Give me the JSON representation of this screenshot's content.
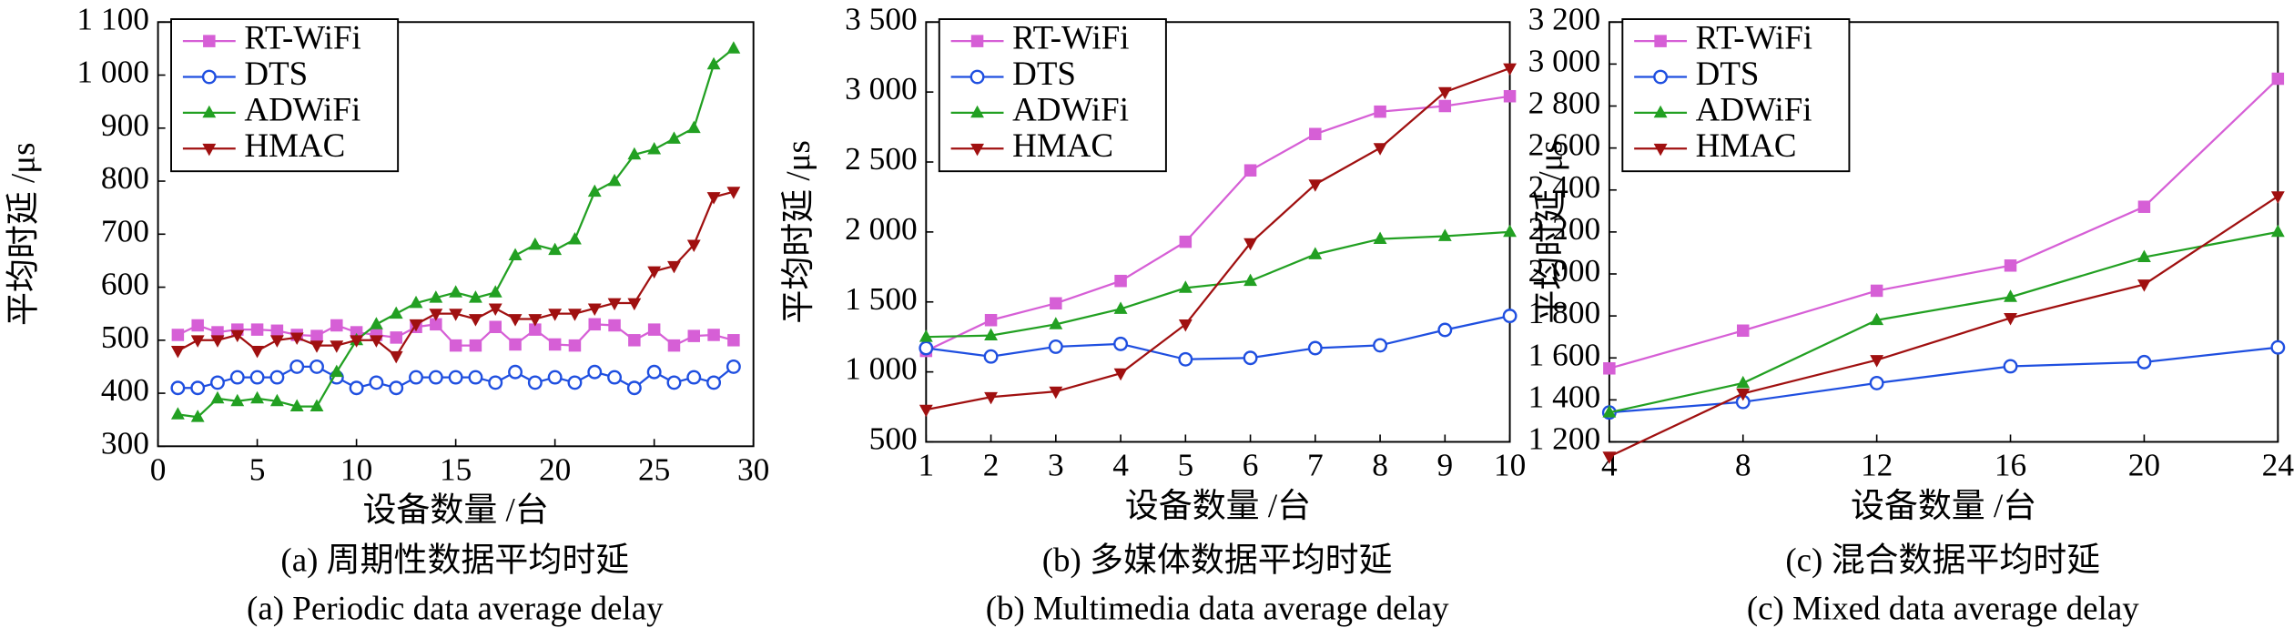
{
  "chart_data": [
    {
      "type": "line",
      "title": "(a) 周期性数据平均时延",
      "subtitle": "(a) Periodic data average delay",
      "xlabel": "设备数量 /台",
      "ylabel": "平均时延 /μs",
      "x": [
        1,
        2,
        3,
        4,
        5,
        6,
        7,
        8,
        9,
        10,
        11,
        12,
        13,
        14,
        15,
        16,
        17,
        18,
        19,
        20,
        21,
        22,
        23,
        24,
        25,
        26,
        27,
        28,
        29
      ],
      "xlim": [
        0,
        30
      ],
      "xticks": [
        0,
        5,
        10,
        15,
        20,
        25,
        30
      ],
      "ylim": [
        300,
        1100
      ],
      "yticks": [
        300,
        400,
        500,
        600,
        700,
        800,
        900,
        {
          "value": 1000,
          "label": "1 000"
        },
        {
          "value": 1100,
          "label": "1 100"
        }
      ],
      "legend": "upper left",
      "series": [
        {
          "name": "RT-WiFi",
          "color": "#d65fd6",
          "marker": "square",
          "values": [
            510,
            528,
            515,
            520,
            520,
            518,
            510,
            508,
            528,
            515,
            510,
            505,
            525,
            530,
            490,
            490,
            525,
            492,
            520,
            492,
            490,
            530,
            528,
            500,
            520,
            490,
            508,
            510,
            500
          ]
        },
        {
          "name": "DTS",
          "color": "#1f4fe0",
          "marker": "circle",
          "values": [
            410,
            410,
            420,
            430,
            430,
            430,
            450,
            450,
            430,
            410,
            420,
            410,
            430,
            430,
            430,
            430,
            420,
            440,
            420,
            430,
            420,
            440,
            430,
            410,
            440,
            420,
            430,
            420,
            450
          ]
        },
        {
          "name": "ADWiFi",
          "color": "#22a022",
          "marker": "triangle",
          "values": [
            360,
            355,
            390,
            385,
            390,
            385,
            375,
            375,
            440,
            500,
            530,
            550,
            570,
            580,
            590,
            580,
            590,
            660,
            680,
            670,
            690,
            780,
            800,
            850,
            860,
            880,
            900,
            1020,
            1050
          ]
        },
        {
          "name": "HMAC",
          "color": "#a01010",
          "marker": "triangle-down",
          "values": [
            480,
            500,
            500,
            510,
            480,
            500,
            505,
            490,
            490,
            500,
            500,
            470,
            530,
            550,
            550,
            540,
            560,
            540,
            540,
            550,
            550,
            560,
            570,
            570,
            630,
            640,
            680,
            770,
            780
          ]
        }
      ]
    },
    {
      "type": "line",
      "title": "(b) 多媒体数据平均时延",
      "subtitle": "(b) Multimedia data average delay",
      "xlabel": "设备数量 /台",
      "ylabel": "平均时延 /μs",
      "x": [
        1,
        2,
        3,
        4,
        5,
        6,
        7,
        8,
        9,
        10
      ],
      "xlim": [
        1,
        10
      ],
      "xticks": [
        1,
        2,
        3,
        4,
        5,
        6,
        7,
        8,
        9,
        10
      ],
      "ylim": [
        500,
        3500
      ],
      "yticks": [
        500,
        {
          "value": 1000,
          "label": "1 000"
        },
        {
          "value": 1500,
          "label": "1 500"
        },
        {
          "value": 2000,
          "label": "2 000"
        },
        {
          "value": 2500,
          "label": "2 500"
        },
        {
          "value": 3000,
          "label": "3 000"
        },
        {
          "value": 3500,
          "label": "3 500"
        }
      ],
      "legend": "upper left",
      "series": [
        {
          "name": "RT-WiFi",
          "color": "#d65fd6",
          "marker": "square",
          "values": [
            1150,
            1370,
            1490,
            1650,
            1930,
            2440,
            2700,
            2860,
            2900,
            2970
          ]
        },
        {
          "name": "DTS",
          "color": "#1f4fe0",
          "marker": "circle",
          "values": [
            1170,
            1110,
            1180,
            1200,
            1090,
            1100,
            1170,
            1190,
            1300,
            1400
          ]
        },
        {
          "name": "ADWiFi",
          "color": "#22a022",
          "marker": "triangle",
          "values": [
            1250,
            1260,
            1340,
            1450,
            1600,
            1650,
            1840,
            1950,
            1970,
            2000
          ]
        },
        {
          "name": "HMAC",
          "color": "#a01010",
          "marker": "triangle-down",
          "values": [
            730,
            820,
            860,
            990,
            1340,
            1920,
            2340,
            2600,
            3000,
            3170
          ]
        }
      ]
    },
    {
      "type": "line",
      "title": "(c) 混合数据平均时延",
      "subtitle": "(c) Mixed data average delay",
      "xlabel": "设备数量 /台",
      "ylabel": "平均时延 /μs",
      "x": [
        4,
        8,
        12,
        16,
        20,
        24
      ],
      "xlim": [
        4,
        24
      ],
      "xticks": [
        4,
        8,
        12,
        16,
        20,
        24
      ],
      "ylim": [
        1200,
        3200
      ],
      "yticks": [
        {
          "value": 1200,
          "label": "1 200"
        },
        {
          "value": 1400,
          "label": "1 400"
        },
        {
          "value": 1600,
          "label": "1 600"
        },
        {
          "value": 1800,
          "label": "1 800"
        },
        {
          "value": 2000,
          "label": "2 000"
        },
        {
          "value": 2200,
          "label": "2 200"
        },
        {
          "value": 2400,
          "label": "2 400"
        },
        {
          "value": 2600,
          "label": "2 600"
        },
        {
          "value": 2800,
          "label": "2 800"
        },
        {
          "value": 3000,
          "label": "3 000"
        },
        {
          "value": 3200,
          "label": "3 200"
        }
      ],
      "legend": "upper left",
      "series": [
        {
          "name": "RT-WiFi",
          "color": "#d65fd6",
          "marker": "square",
          "values": [
            1550,
            1730,
            1920,
            2040,
            2320,
            2930
          ]
        },
        {
          "name": "DTS",
          "color": "#1f4fe0",
          "marker": "circle",
          "values": [
            1340,
            1390,
            1480,
            1560,
            1580,
            1650
          ]
        },
        {
          "name": "ADWiFi",
          "color": "#22a022",
          "marker": "triangle",
          "values": [
            1340,
            1480,
            1780,
            1890,
            2080,
            2200
          ]
        },
        {
          "name": "HMAC",
          "color": "#a01010",
          "marker": "triangle-down",
          "values": [
            1130,
            1430,
            1590,
            1790,
            1950,
            2370
          ]
        }
      ]
    }
  ]
}
